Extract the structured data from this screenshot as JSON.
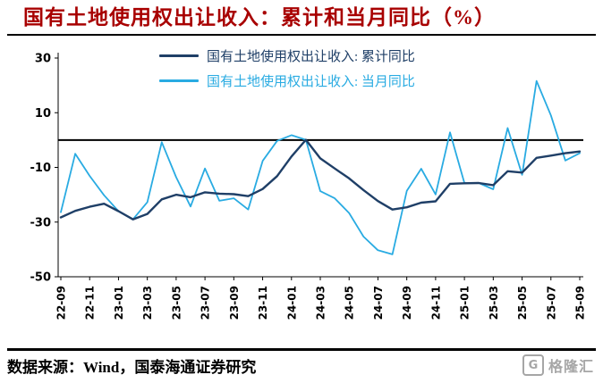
{
  "chart_data": {
    "type": "line",
    "title": "国有土地使用权出让收入：累计和当月同比（%）",
    "title_color": "#a80000",
    "xlabel": "",
    "ylabel": "",
    "ylim": [
      -50,
      30
    ],
    "yticks": [
      30,
      10,
      -10,
      -30,
      -50
    ],
    "zero_line": true,
    "grid": false,
    "legend_position": "top-center",
    "x_tick_every": 2,
    "x": [
      "22-09",
      "22-10",
      "22-11",
      "22-12",
      "23-01",
      "23-02",
      "23-03",
      "23-04",
      "23-05",
      "23-06",
      "23-07",
      "23-08",
      "23-09",
      "23-10",
      "23-11",
      "23-12",
      "24-01",
      "24-02",
      "24-03",
      "24-04",
      "24-05",
      "24-06",
      "24-07",
      "24-08",
      "24-09",
      "24-10",
      "24-11",
      "24-12",
      "25-01",
      "25-02",
      "25-03",
      "25-04",
      "25-05",
      "25-06",
      "25-07",
      "25-08",
      "25-09"
    ],
    "x_tick_labels": [
      "22-09",
      "22-11",
      "23-01",
      "23-03",
      "23-05",
      "23-07",
      "23-09",
      "23-11",
      "24-01",
      "24-03",
      "24-05",
      "24-07",
      "24-09",
      "24-11",
      "25-01",
      "25-03",
      "25-05",
      "25-07",
      "25-09"
    ],
    "series": [
      {
        "key": "cumulative",
        "name": "国有土地使用权出让收入: 累计同比",
        "color": "#1f3f67",
        "width": 2.4,
        "values": [
          -28.3,
          -25.9,
          -24.4,
          -23.3,
          -26.0,
          -29.0,
          -27.0,
          -21.7,
          -20.0,
          -20.9,
          -19.1,
          -19.6,
          -19.8,
          -20.5,
          -17.9,
          -13.2,
          -6.0,
          0.1,
          -6.7,
          -10.4,
          -14.0,
          -18.3,
          -22.3,
          -25.4,
          -24.6,
          -22.9,
          -22.4,
          -16.0,
          -15.8,
          -15.7,
          -16.5,
          -11.4,
          -11.9,
          -6.5,
          -5.7,
          -4.8,
          -4.2
        ]
      },
      {
        "key": "monthly",
        "name": "国有土地使用权出让收入: 当月同比",
        "color": "#29abe2",
        "width": 1.8,
        "values": [
          -26.4,
          -5.0,
          -13.1,
          -20.2,
          -26.0,
          -29.0,
          -22.7,
          -0.8,
          -13.6,
          -24.3,
          -10.4,
          -22.2,
          -21.3,
          -25.4,
          -7.6,
          -0.3,
          1.8,
          0.1,
          -18.7,
          -21.3,
          -26.7,
          -35.3,
          -40.3,
          -41.8,
          -18.6,
          -10.5,
          -19.9,
          2.8,
          -15.7,
          -15.7,
          -18.0,
          4.4,
          -12.7,
          21.6,
          9.0,
          -7.5,
          -4.8
        ]
      }
    ]
  },
  "footer": {
    "source": "数据来源：Wind，国泰海通证券研究",
    "logo_letter": "G",
    "logo_text": "格隆汇"
  }
}
